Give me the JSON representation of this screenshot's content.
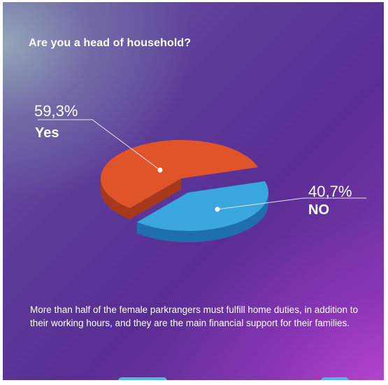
{
  "title": "Are you a head of household?",
  "chart_data": {
    "type": "pie",
    "title": "Are you a head of household?",
    "slices": [
      {
        "label": "Yes",
        "value": 59.3,
        "value_label": "59,3%",
        "color": "#e0542a",
        "side_color": "#a8381a"
      },
      {
        "label": "NO",
        "value": 40.7,
        "value_label": "40,7%",
        "color": "#3aa6de",
        "side_color": "#1f6fae"
      }
    ]
  },
  "caption": "More than half of the female parkrangers must fulfill home duties, in addition to their working hours, and they are the main financial support for their families.",
  "colors": {
    "leader_line": "#e8e4f0",
    "text": "#ffffff"
  }
}
